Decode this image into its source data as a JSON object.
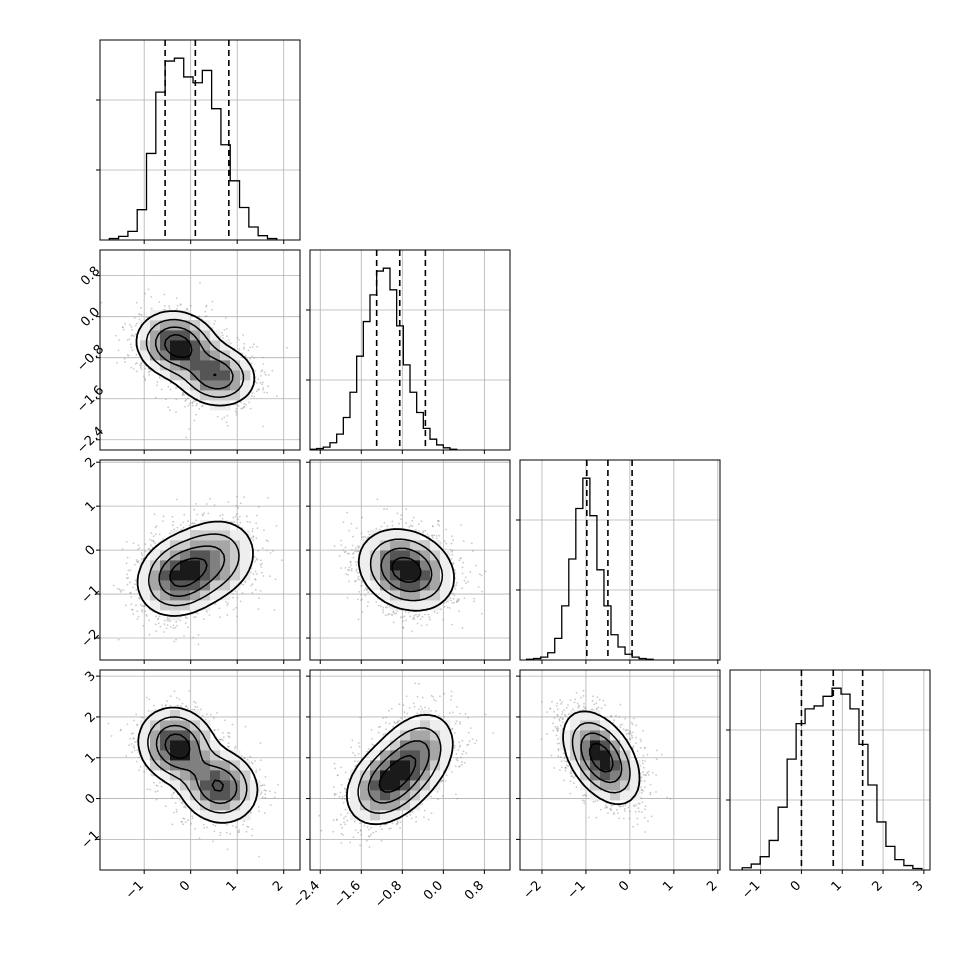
{
  "chart_data": {
    "type": "corner",
    "title": "",
    "grid": true,
    "colors": {
      "line": "#000000",
      "grid": "#b0b0b0",
      "scatter": "#8a8a8a",
      "background": "#ffffff"
    },
    "params": [
      {
        "range": [
          -1.95,
          2.35
        ],
        "ticks": [
          -1,
          0,
          1,
          2
        ],
        "tick_labels": [
          "−1",
          "0",
          "1",
          "2"
        ],
        "quantiles": [
          -0.55,
          0.1,
          0.82
        ],
        "hist": {
          "edges_start": -1.75,
          "bin": 0.2,
          "counts": [
            2,
            5,
            12,
            42,
            120,
            205,
            248,
            252,
            226,
            218,
            235,
            182,
            132,
            82,
            45,
            18,
            6,
            2
          ]
        }
      },
      {
        "range": [
          -2.6,
          1.3
        ],
        "ticks": [
          -2.4,
          -1.6,
          -0.8,
          0.0,
          0.8
        ],
        "tick_labels": [
          "−2.4",
          "−1.6",
          "−0.8",
          "0.0",
          "0.8"
        ],
        "quantiles": [
          -1.3,
          -0.85,
          -0.35
        ],
        "hist": {
          "edges_start": -2.6,
          "bin": 0.13,
          "counts": [
            1,
            2,
            4,
            10,
            22,
            45,
            80,
            130,
            178,
            215,
            248,
            252,
            222,
            172,
            118,
            80,
            52,
            30,
            15,
            7,
            3,
            1
          ]
        }
      },
      {
        "range": [
          -2.5,
          2.05
        ],
        "ticks": [
          -2,
          -1,
          0,
          1,
          2
        ],
        "tick_labels": [
          "−2",
          "−1",
          "0",
          "1",
          "2"
        ],
        "quantiles": [
          -0.98,
          -0.5,
          0.05
        ],
        "hist": {
          "edges_start": -2.35,
          "bin": 0.16,
          "counts": [
            1,
            2,
            4,
            10,
            30,
            75,
            140,
            210,
            252,
            200,
            125,
            75,
            35,
            18,
            8,
            4,
            2,
            1
          ]
        }
      },
      {
        "range": [
          -1.75,
          3.15
        ],
        "ticks": [
          -1,
          0,
          1,
          2,
          3
        ],
        "tick_labels": [
          "−1",
          "0",
          "1",
          "2",
          "3"
        ],
        "quantiles": [
          0.0,
          0.78,
          1.5
        ],
        "hist": {
          "edges_start": -1.45,
          "bin": 0.22,
          "counts": [
            3,
            8,
            18,
            40,
            85,
            150,
            198,
            218,
            222,
            235,
            246,
            238,
            218,
            170,
            115,
            65,
            32,
            14,
            6,
            2
          ]
        }
      }
    ],
    "pairs": [
      {
        "x": 0,
        "y": 1,
        "modes": [
          [
            -0.3,
            -0.55,
            0.42,
            0.32,
            1.0
          ],
          [
            0.55,
            -1.15,
            0.42,
            0.3,
            0.8
          ]
        ],
        "rho": -0.1
      },
      {
        "x": 0,
        "y": 2,
        "modes": [
          [
            -0.25,
            -0.6,
            0.45,
            0.45,
            1.0
          ],
          [
            0.5,
            -0.2,
            0.48,
            0.48,
            0.65
          ]
        ],
        "rho": 0.15
      },
      {
        "x": 1,
        "y": 2,
        "modes": [
          [
            -0.72,
            -0.45,
            0.45,
            0.45,
            1.0
          ]
        ],
        "rho": -0.2
      },
      {
        "x": 0,
        "y": 3,
        "modes": [
          [
            -0.3,
            1.3,
            0.4,
            0.45,
            1.0
          ],
          [
            0.6,
            0.3,
            0.42,
            0.45,
            0.85
          ]
        ],
        "rho": -0.1
      },
      {
        "x": 1,
        "y": 3,
        "modes": [
          [
            -1.1,
            0.35,
            0.4,
            0.5,
            1.0
          ],
          [
            -0.55,
            1.05,
            0.4,
            0.55,
            0.8
          ]
        ],
        "rho": 0.3
      },
      {
        "x": 2,
        "y": 3,
        "modes": [
          [
            -0.65,
            1.0,
            0.42,
            0.55,
            1.0
          ]
        ],
        "rho": -0.45
      }
    ]
  }
}
